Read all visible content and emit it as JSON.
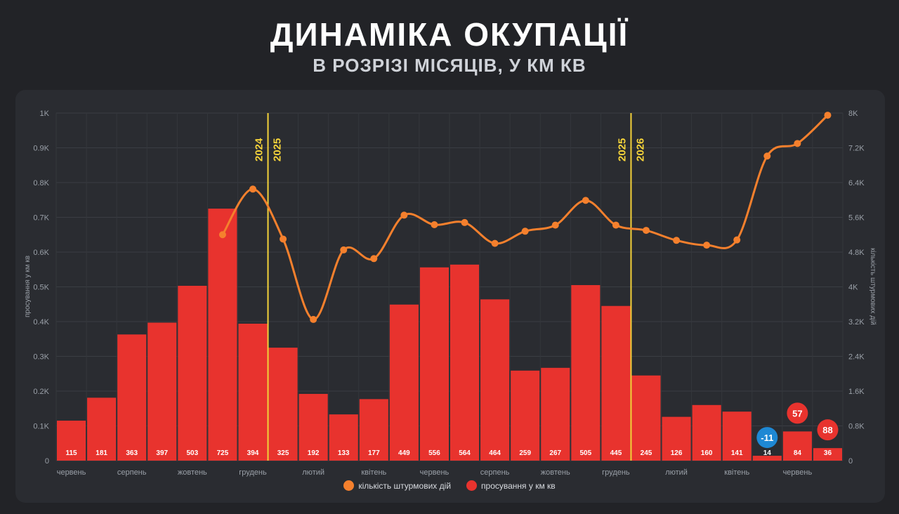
{
  "header": {
    "title": "ДИНАМІКА ОКУПАЦІЇ",
    "subtitle": "В РОЗРІЗІ МІСЯЦІВ, У КМ КВ"
  },
  "legend": {
    "assaults_label": "кількість штурмових дій",
    "advance_label": "просування у км кв"
  },
  "colors": {
    "bar": "#e8332e",
    "line": "#f5802d",
    "year_line": "#f5d33a",
    "negative_badge": "#1e88d4",
    "positive_badge": "#e8332e"
  },
  "chart_data": {
    "type": "bar",
    "left_axis_label": "просування у км кв",
    "right_axis_label": "кількість штурмових дій",
    "left_ticks": [
      "0",
      "0.1K",
      "0.2K",
      "0.3K",
      "0.4K",
      "0.5K",
      "0.6K",
      "0.7K",
      "0.8K",
      "0.9K",
      "1K"
    ],
    "right_ticks": [
      "0",
      "0.8K",
      "1.6K",
      "2.4K",
      "3.2K",
      "4K",
      "4.8K",
      "5.6K",
      "6.4K",
      "7.2K",
      "8K"
    ],
    "ylim_left": [
      0,
      1000
    ],
    "ylim_right": [
      0,
      8000
    ],
    "x_tick_labels": [
      "червень",
      "",
      "серпень",
      "",
      "жовтень",
      "",
      "грудень",
      "",
      "лютий",
      "",
      "квітень",
      "",
      "червень",
      "",
      "серпень",
      "",
      "жовтень",
      "",
      "грудень",
      "",
      "лютий",
      "",
      "квітень",
      "",
      "червень",
      ""
    ],
    "advance_values": [
      115,
      181,
      363,
      397,
      503,
      725,
      394,
      325,
      192,
      133,
      177,
      449,
      556,
      564,
      464,
      259,
      267,
      505,
      445,
      245,
      126,
      160,
      141,
      14,
      84,
      36
    ],
    "assaults_values": [
      null,
      null,
      null,
      null,
      null,
      5200,
      6250,
      5100,
      3250,
      4850,
      4650,
      5650,
      5430,
      5480,
      5000,
      5280,
      5420,
      5990,
      5420,
      5300,
      5070,
      4960,
      5080,
      7010,
      7300,
      7950
    ],
    "year_markers": [
      {
        "labels": [
          "2024",
          "2025"
        ]
      },
      {
        "labels": [
          "2025",
          "2026"
        ]
      }
    ],
    "badges": [
      {
        "index": 23,
        "text": "-11",
        "kind": "negative"
      },
      {
        "index": 24,
        "text": "57",
        "kind": "positive"
      },
      {
        "index": 25,
        "text": "88",
        "kind": "positive"
      }
    ]
  }
}
